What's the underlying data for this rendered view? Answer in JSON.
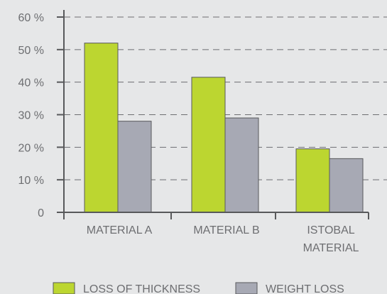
{
  "chart_data": {
    "type": "bar",
    "categories": [
      "MATERIAL A",
      "MATERIAL B",
      "ISTOBAL MATERIAL"
    ],
    "category_label_lines": [
      [
        "MATERIAL A"
      ],
      [
        "MATERIAL B"
      ],
      [
        "ISTOBAL",
        "MATERIAL"
      ]
    ],
    "series": [
      {
        "name": "LOSS OF THICKNESS",
        "values": [
          52,
          41.5,
          19.5
        ],
        "color": "#bcd630"
      },
      {
        "name": "WEIGHT LOSS",
        "values": [
          28,
          29,
          16.5
        ],
        "color": "#a7a9b4"
      }
    ],
    "yticks": [
      {
        "value": 0,
        "label": "0"
      },
      {
        "value": 10,
        "label": "10 %"
      },
      {
        "value": 20,
        "label": "20 %"
      },
      {
        "value": 30,
        "label": "30 %"
      },
      {
        "value": 40,
        "label": "40 %"
      },
      {
        "value": 50,
        "label": "50 %"
      },
      {
        "value": 60,
        "label": "60 %"
      }
    ],
    "ylim": [
      0,
      60
    ],
    "grid": true,
    "legend_position": "bottom",
    "title": "",
    "xlabel": "",
    "ylabel": "",
    "colors": {
      "background": "#e6e7e8",
      "axis": "#58595b",
      "grid": "#6d6e71",
      "text": "#6d6e71"
    }
  }
}
